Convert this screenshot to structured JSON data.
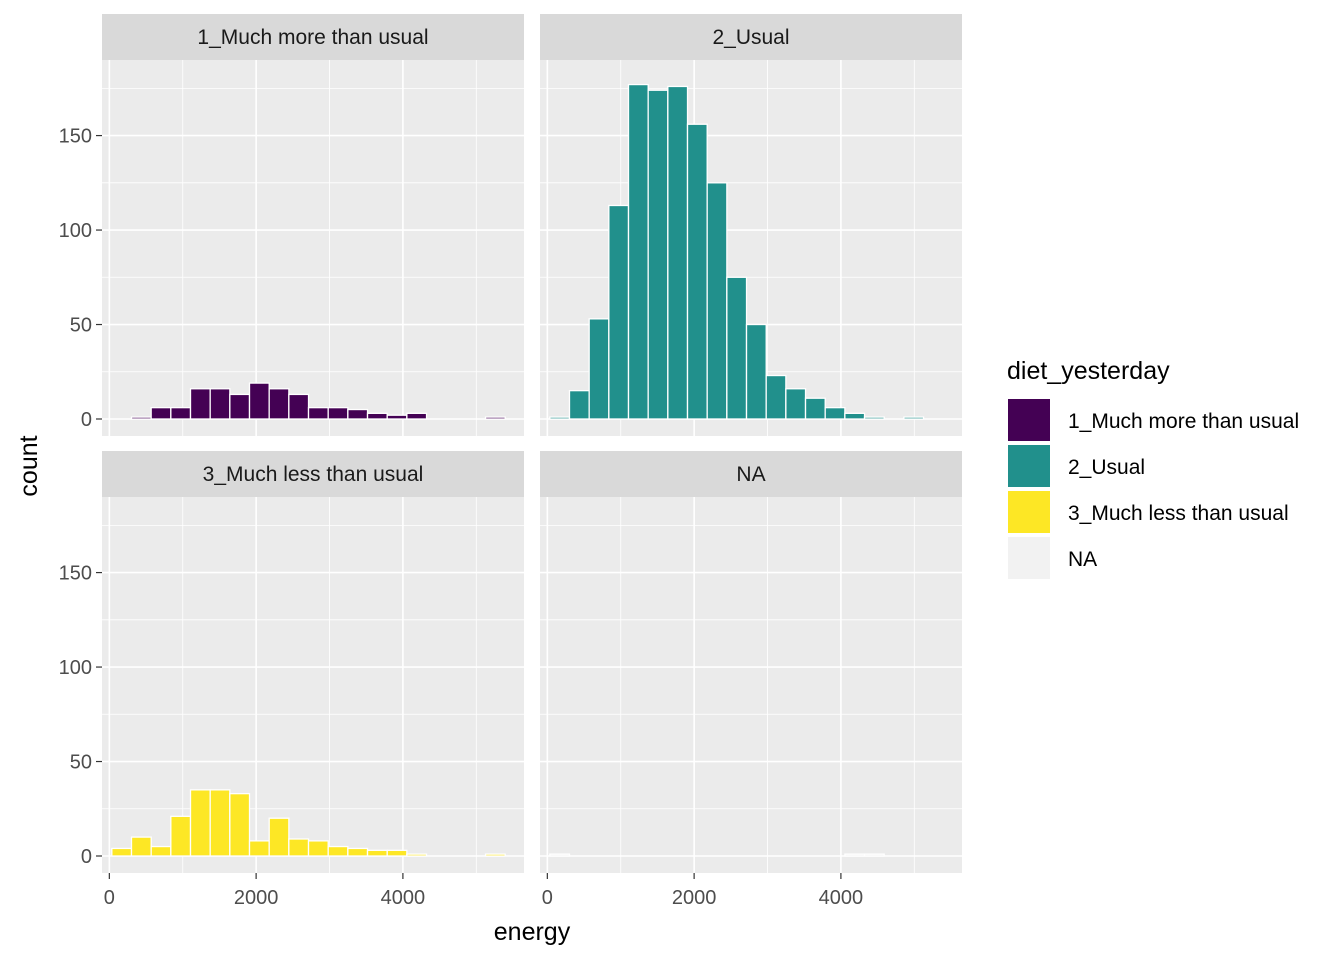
{
  "chart_data": {
    "type": "bar",
    "chart_kind": "histogram (faceted)",
    "xlabel": "energy",
    "ylabel": "count",
    "xlim": [
      -100,
      5650
    ],
    "ylim": [
      -9,
      190
    ],
    "x_ticks": [
      0,
      2000,
      4000
    ],
    "y_ticks": [
      0,
      50,
      100,
      150
    ],
    "grid": true,
    "bin_width": 268,
    "bin_centers": [
      168,
      436,
      704,
      972,
      1240,
      1508,
      1776,
      2044,
      2312,
      2580,
      2848,
      3116,
      3384,
      3652,
      3920,
      4188,
      4456,
      4724,
      4992,
      5260
    ],
    "legend": {
      "title": "diet_yesterday",
      "position": "right",
      "entries": [
        {
          "label": "1_Much more than usual",
          "color": "#440154"
        },
        {
          "label": "2_Usual",
          "color": "#21908C"
        },
        {
          "label": "3_Much less than usual",
          "color": "#FDE725"
        },
        {
          "label": "NA",
          "color": "#F2F2F2"
        }
      ]
    },
    "facets": [
      {
        "strip": "1_Much more than usual",
        "color": "#440154",
        "counts": [
          0,
          1,
          6,
          6,
          16,
          16,
          13,
          19,
          16,
          13,
          6,
          6,
          5,
          3,
          2,
          3,
          0,
          0,
          0,
          1
        ]
      },
      {
        "strip": "2_Usual",
        "color": "#21908C",
        "counts": [
          1,
          15,
          53,
          113,
          177,
          174,
          176,
          156,
          125,
          75,
          50,
          23,
          16,
          11,
          6,
          3,
          1,
          0,
          1,
          0
        ]
      },
      {
        "strip": "3_Much less than usual",
        "color": "#FDE725",
        "counts": [
          4,
          10,
          5,
          21,
          35,
          35,
          33,
          8,
          20,
          9,
          8,
          5,
          4,
          3,
          3,
          1,
          0,
          0,
          0,
          1
        ]
      },
      {
        "strip": "NA",
        "color": "#F2F2F2",
        "counts": [
          1,
          0,
          0,
          0,
          0,
          0,
          0,
          0,
          0,
          0,
          0,
          0,
          0,
          0,
          0,
          1,
          1,
          0,
          0,
          0
        ]
      }
    ]
  }
}
